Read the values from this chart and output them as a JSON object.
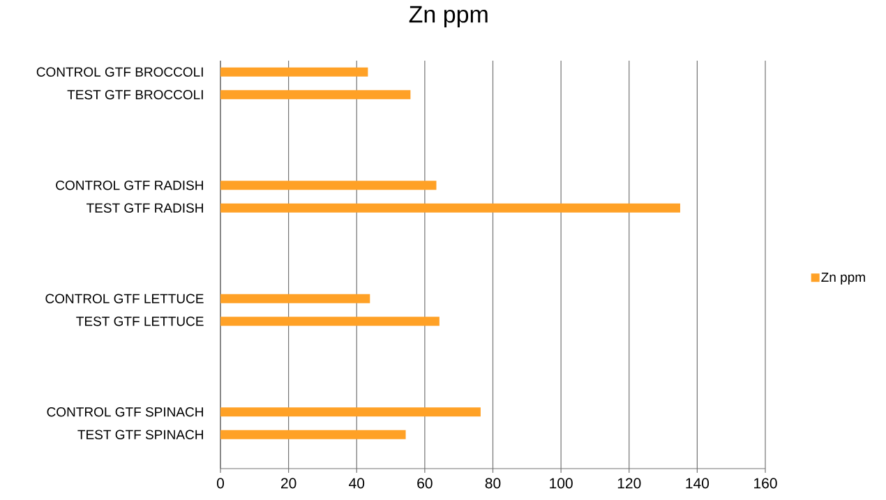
{
  "chart_data": {
    "type": "bar",
    "title": "Zn ppm",
    "orientation": "horizontal",
    "categories": [
      "CONTROL GTF BROCCOLI",
      "TEST GTF BROCCOLI",
      null,
      null,
      null,
      "CONTROL GTF RADISH",
      "TEST GTF RADISH",
      null,
      null,
      null,
      "CONTROL GTF LETTUCE",
      "TEST GTF LETTUCE",
      null,
      null,
      null,
      "CONTROL GTF SPINACH",
      "TEST GTF SPINACH",
      null
    ],
    "series": [
      {
        "name": "Zn ppm",
        "color": "#ffa126",
        "values": [
          43.3,
          55.8,
          null,
          null,
          null,
          63.4,
          135,
          null,
          null,
          null,
          43.9,
          64.3,
          null,
          null,
          null,
          76.4,
          54.4,
          null
        ]
      }
    ],
    "xlim": [
      0,
      160
    ],
    "xticks": [
      0,
      20,
      40,
      60,
      80,
      100,
      120,
      140,
      160
    ],
    "grid": "x",
    "legend": "right"
  }
}
